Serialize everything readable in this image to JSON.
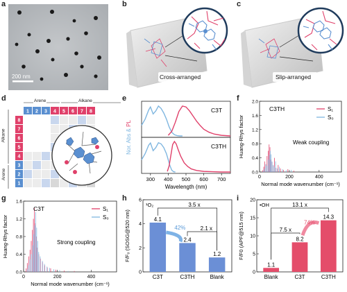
{
  "panels": {
    "a": {
      "letter": "a",
      "scale_bar": "200 nm"
    },
    "b": {
      "letter": "b",
      "caption": "Cross-arranged"
    },
    "c": {
      "letter": "c",
      "caption": "Slip-arranged"
    },
    "d": {
      "letter": "d",
      "header_arene": "Arene",
      "header_alkane": "Alkane",
      "col_numbers": [
        "1",
        "2",
        "3",
        "4",
        "5",
        "6",
        "7",
        "8"
      ],
      "row_numbers": [
        "8",
        "7",
        "6",
        "5",
        "4",
        "3",
        "2",
        "1"
      ],
      "side_alkane": "Alkane",
      "side_arene": "Arene"
    },
    "e": {
      "letter": "e"
    },
    "f": {
      "letter": "f"
    },
    "g": {
      "letter": "g"
    },
    "h": {
      "letter": "h"
    },
    "i": {
      "letter": "i"
    }
  },
  "colors": {
    "s1": "#e0406a",
    "s0": "#7fb6e0",
    "pink": "#e0406a",
    "blue": "#5a8fd0",
    "bar_h": "#6b8fd6",
    "bar_i": "#e44d6a",
    "blank_h": "#6b8fd6",
    "blank_i": "#e44d6a"
  },
  "chart_data": [
    {
      "id": "e",
      "type": "line",
      "ylabel": "Nor. Abs & PL",
      "xlabel": "Wavelength (nm)",
      "xlim": [
        250,
        750
      ],
      "xticks": [
        "300",
        "400",
        "500",
        "600",
        "700"
      ],
      "subplots": [
        {
          "label": "C3T",
          "series": [
            {
              "name": "Abs",
              "x": [
                250,
                270,
                290,
                300,
                315,
                330,
                345,
                360,
                375,
                390,
                405,
                420,
                435,
                450,
                465,
                480
              ],
              "y": [
                0.35,
                0.55,
                0.85,
                0.95,
                0.72,
                0.82,
                0.98,
                0.9,
                0.75,
                0.55,
                0.3,
                0.12,
                0.04,
                0.01,
                0.0,
                0.0
              ]
            },
            {
              "name": "PL",
              "x": [
                400,
                420,
                440,
                460,
                480,
                500,
                520,
                540,
                560,
                580,
                600,
                630,
                660,
                700,
                750
              ],
              "y": [
                0.02,
                0.15,
                0.45,
                0.8,
                0.98,
                0.95,
                0.82,
                0.65,
                0.48,
                0.34,
                0.22,
                0.12,
                0.06,
                0.02,
                0.0
              ]
            }
          ]
        },
        {
          "label": "C3TH",
          "series": [
            {
              "name": "Abs",
              "x": [
                250,
                270,
                290,
                300,
                315,
                330,
                345,
                360,
                375,
                390,
                400,
                410,
                420,
                430,
                440
              ],
              "y": [
                0.4,
                0.6,
                0.88,
                0.95,
                0.7,
                0.8,
                0.96,
                0.92,
                0.8,
                0.6,
                0.4,
                0.2,
                0.06,
                0.01,
                0.0
              ]
            },
            {
              "name": "PL",
              "x": [
                395,
                405,
                415,
                425,
                435,
                445,
                455,
                470,
                490,
                510,
                530,
                560,
                600,
                650,
                700,
                750
              ],
              "y": [
                0.02,
                0.2,
                0.55,
                0.9,
                1.0,
                0.92,
                0.75,
                0.52,
                0.3,
                0.18,
                0.1,
                0.05,
                0.02,
                0.01,
                0.0,
                0.0
              ]
            }
          ]
        }
      ]
    },
    {
      "id": "f",
      "type": "bar",
      "title": "C3TH",
      "annotation": "Weak coupling",
      "ylabel": "Huang-Rhys factor",
      "xlabel": "Normal mode wavenumber (cm⁻¹)",
      "ylim": [
        0,
        2.0
      ],
      "yticks": [
        "0.0",
        "0.4",
        "0.8",
        "1.2",
        "1.6",
        "2.0"
      ],
      "xlim": [
        0,
        550
      ],
      "xticks": [
        "0",
        "200",
        "400"
      ],
      "legend": [
        "S₁",
        "S₀"
      ],
      "series": [
        {
          "name": "S₁",
          "x": [
            20,
            28,
            35,
            42,
            50,
            58,
            64,
            70,
            76,
            84,
            92,
            100,
            110,
            125,
            140,
            160,
            190,
            230
          ],
          "y": [
            0.05,
            0.15,
            0.3,
            0.22,
            0.45,
            0.6,
            0.78,
            0.7,
            0.35,
            0.28,
            0.18,
            0.4,
            0.12,
            0.2,
            0.1,
            0.06,
            0.08,
            0.04
          ]
        },
        {
          "name": "S₀",
          "x": [
            22,
            30,
            38,
            46,
            54,
            62,
            68,
            74,
            80,
            88,
            96,
            104,
            115,
            130,
            150,
            175,
            210
          ],
          "y": [
            0.04,
            0.1,
            0.22,
            0.18,
            0.35,
            0.48,
            0.6,
            0.5,
            0.3,
            0.2,
            0.15,
            0.3,
            0.1,
            0.15,
            0.08,
            0.05,
            0.06
          ]
        }
      ]
    },
    {
      "id": "g",
      "type": "bar",
      "title": "C3T",
      "annotation": "Strong coupling",
      "ylabel": "Huang-Rhys factor",
      "xlabel": "Normal mode wavenumber (cm⁻¹)",
      "ylim": [
        0,
        1.6
      ],
      "yticks": [
        "0.0",
        "0.4",
        "0.8",
        "1.2",
        "1.6"
      ],
      "xlim": [
        0,
        550
      ],
      "xticks": [
        "0",
        "200",
        "400"
      ],
      "legend": [
        "S₁",
        "S₀"
      ],
      "series": [
        {
          "name": "S₁",
          "x": [
            15,
            22,
            30,
            38,
            45,
            52,
            58,
            64,
            70,
            76,
            82,
            90,
            100,
            112,
            125,
            140,
            160,
            190,
            240,
            300
          ],
          "y": [
            0.08,
            0.2,
            0.35,
            0.5,
            0.7,
            0.95,
            1.2,
            1.45,
            1.1,
            0.8,
            0.55,
            0.4,
            0.3,
            0.22,
            0.15,
            0.1,
            0.08,
            0.05,
            0.03,
            0.02
          ]
        },
        {
          "name": "S₀",
          "x": [
            18,
            26,
            34,
            42,
            50,
            56,
            62,
            68,
            74,
            80,
            86,
            95,
            108,
            120,
            135,
            150,
            175,
            210,
            260
          ],
          "y": [
            0.06,
            0.15,
            0.28,
            0.4,
            0.6,
            0.85,
            1.05,
            1.35,
            1.0,
            0.7,
            0.45,
            0.35,
            0.25,
            0.18,
            0.12,
            0.09,
            0.06,
            0.04,
            0.02
          ]
        }
      ]
    },
    {
      "id": "h",
      "type": "bar",
      "ylabel": "F/F₀ (SOSG@520 nm)",
      "corner_label": "¹O₂",
      "ylim": [
        0,
        6
      ],
      "yticks": [
        "0",
        "2",
        "4",
        "6"
      ],
      "categories": [
        "C3T",
        "C3TH",
        "Blank"
      ],
      "values": [
        4.1,
        2.4,
        1.2
      ],
      "value_labels": [
        "4.1",
        "2.4",
        "1.2"
      ],
      "brackets": [
        "3.5 x",
        "2.1 x"
      ],
      "arrow_label": "42%"
    },
    {
      "id": "i",
      "type": "bar",
      "ylabel": "F/F0 (APF@515 nm)",
      "corner_label": "•OH",
      "ylim": [
        0,
        20
      ],
      "yticks": [
        "0",
        "5",
        "10",
        "15",
        "20"
      ],
      "categories": [
        "Blank",
        "C3T",
        "C3TH"
      ],
      "values": [
        1.1,
        8.2,
        14.3
      ],
      "value_labels": [
        "1.1",
        "8.2",
        "14.3"
      ],
      "brackets": [
        "13.1 x",
        "7.5 x"
      ],
      "arrow_label": "74%"
    }
  ]
}
